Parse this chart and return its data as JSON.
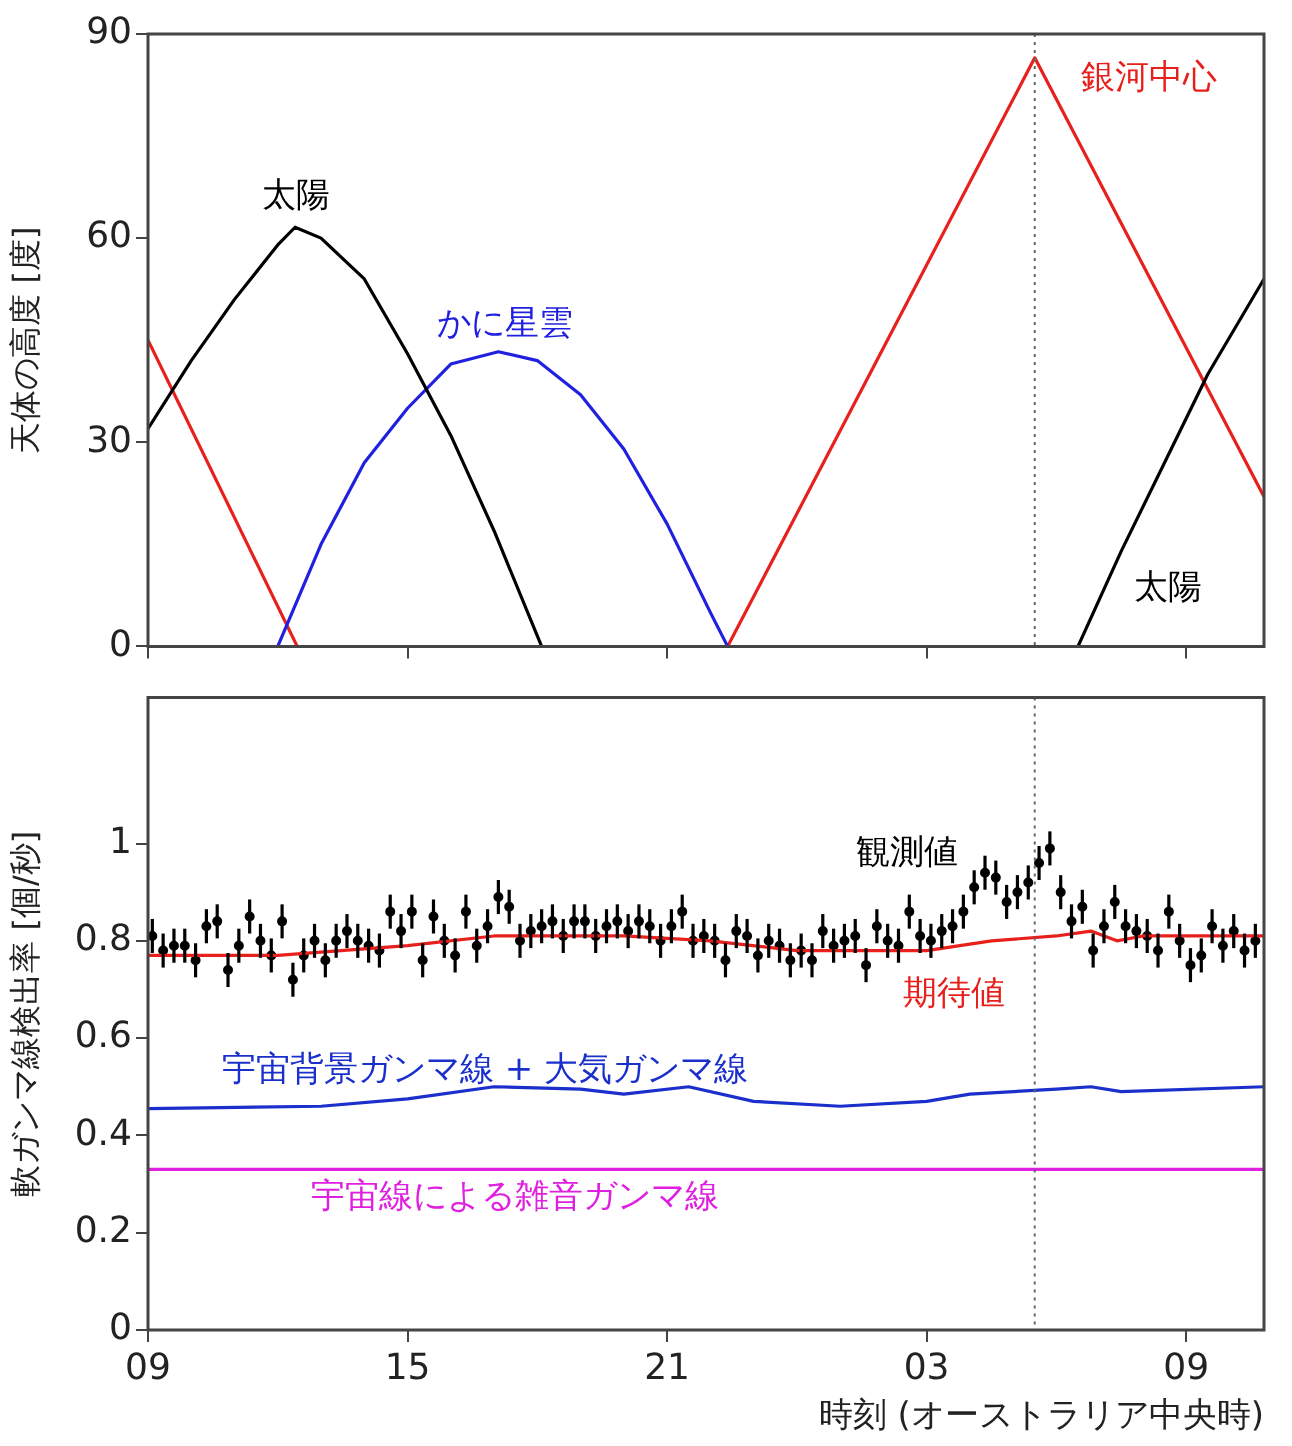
{
  "chart_data": [
    {
      "type": "line",
      "ylabel": "天体の高度 [度]",
      "xlim": [
        "--01-01T09:00",
        "--01-02T10:48"
      ],
      "ylim": [
        0,
        90
      ],
      "xticks": [
        {
          "value": "--01-01T09:00",
          "label": "09"
        },
        {
          "value": "--01-01T15:00",
          "label": "15"
        },
        {
          "value": "--01-01T21:00",
          "label": "21"
        },
        {
          "value": "--01-02T03:00",
          "label": "03"
        },
        {
          "value": "--01-02T09:00",
          "label": "09"
        }
      ],
      "yticks": [
        0,
        30,
        60,
        90
      ],
      "tick_labels": "y",
      "ref_lines": [
        {
          "axis": "x",
          "value": "--01-02T05:30",
          "line_style": "dotted",
          "color": "#666666"
        }
      ],
      "series": [
        {
          "name": "太陽",
          "color": "#000000",
          "x": [
            "--01-01T09:00",
            "--01-01T10:00",
            "--01-01T11:00",
            "--01-01T12:00",
            "--01-01T12:24",
            "--01-01T13:00",
            "--01-01T14:00",
            "--01-01T15:00",
            "--01-01T16:00",
            "--01-01T17:00",
            "--01-01T18:06",
            "--01-02T00:00",
            "--01-02T06:30",
            "--01-02T07:30",
            "--01-02T08:30",
            "--01-02T09:30",
            "--01-02T10:48"
          ],
          "values": [
            32,
            42,
            51,
            59,
            61.6,
            60,
            54,
            43,
            31,
            17,
            0,
            null,
            0,
            14,
            27,
            40,
            54
          ]
        },
        {
          "name": "かに星雲",
          "color": "#2020e0",
          "x": [
            "--01-01T12:00",
            "--01-01T13:00",
            "--01-01T14:00",
            "--01-01T15:00",
            "--01-01T16:00",
            "--01-01T17:06",
            "--01-01T18:00",
            "--01-01T19:00",
            "--01-01T20:00",
            "--01-01T21:00",
            "--01-01T22:00",
            "--01-01T22:24"
          ],
          "values": [
            0,
            15,
            27,
            35,
            41.5,
            43.3,
            42,
            37,
            29,
            18,
            5,
            0
          ]
        },
        {
          "name": "銀河中心",
          "color": "#e8201c",
          "x": [
            "--01-01T09:00",
            "--01-01T12:27",
            "--01-01T17:00",
            "--01-01T22:24",
            "--01-02T05:30",
            "--01-02T10:48"
          ],
          "values": [
            45,
            0,
            null,
            0,
            86.5,
            22
          ]
        }
      ]
    },
    {
      "type": "line",
      "ylabel": "軟ガンマ線検出率 [個/秒]",
      "xlabel": "時刻 (オーストラリア中央時)",
      "xlim": [
        "--01-01T09:00",
        "--01-02T10:48"
      ],
      "ylim": [
        0,
        1.3
      ],
      "xticks": [
        {
          "value": "--01-01T09:00",
          "label": "09"
        },
        {
          "value": "--01-01T15:00",
          "label": "15"
        },
        {
          "value": "--01-01T21:00",
          "label": "21"
        },
        {
          "value": "--01-02T03:00",
          "label": "03"
        },
        {
          "value": "--01-02T09:00",
          "label": "09"
        }
      ],
      "yticks": [
        0,
        0.2,
        0.4,
        0.6,
        0.8,
        1.0
      ],
      "ref_lines": [
        {
          "axis": "x",
          "value": "--01-02T05:30",
          "line_style": "dotted",
          "color": "#666666"
        }
      ],
      "series": [
        {
          "name": "宇宙線による雑音ガンマ線",
          "color": "#e020e0",
          "x": [
            "--01-01T09:00",
            "--01-02T10:48"
          ],
          "values": [
            0.33,
            0.33
          ]
        },
        {
          "name": "宇宙背景ガンマ線 + 大気ガンマ線",
          "color": "#1a2fcc",
          "x": [
            "--01-01T09:00",
            "--01-01T13:00",
            "--01-01T15:00",
            "--01-01T17:00",
            "--01-01T19:00",
            "--01-01T20:00",
            "--01-01T21:30",
            "--01-01T23:00",
            "--01-02T01:00",
            "--01-02T03:00",
            "--01-02T04:00",
            "--01-02T06:00",
            "--01-02T06:48",
            "--01-02T07:30",
            "--01-02T10:48"
          ],
          "values": [
            0.455,
            0.46,
            0.475,
            0.5,
            0.495,
            0.485,
            0.5,
            0.47,
            0.46,
            0.47,
            0.485,
            0.495,
            0.5,
            0.49,
            0.5
          ]
        },
        {
          "name": "期待値",
          "color": "#e8201c",
          "x": [
            "--01-01T09:00",
            "--01-01T12:00",
            "--01-01T15:00",
            "--01-01T17:00",
            "--01-01T20:00",
            "--01-01T22:00",
            "--01-02T00:00",
            "--01-02T03:00",
            "--01-02T04:30",
            "--01-02T06:00",
            "--01-02T06:48",
            "--01-02T07:24",
            "--01-02T08:00",
            "--01-02T10:48"
          ],
          "values": [
            0.77,
            0.77,
            0.79,
            0.81,
            0.81,
            0.8,
            0.78,
            0.78,
            0.8,
            0.81,
            0.82,
            0.8,
            0.81,
            0.81
          ]
        },
        {
          "name": "観測値",
          "type": "scatter",
          "color": "#000000",
          "marker": "circle",
          "x": [
            "--01-01T09:06",
            "--01-01T09:21",
            "--01-01T09:36",
            "--01-01T09:51",
            "--01-01T10:06",
            "--01-01T10:21",
            "--01-01T10:36",
            "--01-01T10:51",
            "--01-01T11:06",
            "--01-01T11:21",
            "--01-01T11:36",
            "--01-01T11:51",
            "--01-01T12:06",
            "--01-01T12:21",
            "--01-01T12:36",
            "--01-01T12:51",
            "--01-01T13:06",
            "--01-01T13:21",
            "--01-01T13:36",
            "--01-01T13:51",
            "--01-01T14:06",
            "--01-01T14:21",
            "--01-01T14:36",
            "--01-01T14:51",
            "--01-01T15:06",
            "--01-01T15:21",
            "--01-01T15:36",
            "--01-01T15:51",
            "--01-01T16:06",
            "--01-01T16:21",
            "--01-01T16:36",
            "--01-01T16:51",
            "--01-01T17:06",
            "--01-01T17:21",
            "--01-01T17:36",
            "--01-01T17:51",
            "--01-01T18:06",
            "--01-01T18:21",
            "--01-01T18:36",
            "--01-01T18:51",
            "--01-01T19:06",
            "--01-01T19:21",
            "--01-01T19:36",
            "--01-01T19:51",
            "--01-01T20:06",
            "--01-01T20:21",
            "--01-01T20:36",
            "--01-01T20:51",
            "--01-01T21:06",
            "--01-01T21:21",
            "--01-01T21:36",
            "--01-01T21:51",
            "--01-01T22:06",
            "--01-01T22:21",
            "--01-01T22:36",
            "--01-01T22:51",
            "--01-01T23:06",
            "--01-01T23:21",
            "--01-01T23:36",
            "--01-01T23:51",
            "--01-02T00:06",
            "--01-02T00:21",
            "--01-02T00:36",
            "--01-02T00:51",
            "--01-02T01:06",
            "--01-02T01:21",
            "--01-02T01:36",
            "--01-02T01:51",
            "--01-02T02:06",
            "--01-02T02:21",
            "--01-02T02:36",
            "--01-02T02:51",
            "--01-02T03:06",
            "--01-02T03:21",
            "--01-02T03:36",
            "--01-02T03:51",
            "--01-02T04:06",
            "--01-02T04:21",
            "--01-02T04:36",
            "--01-02T04:51",
            "--01-02T05:06",
            "--01-02T05:21",
            "--01-02T05:36",
            "--01-02T05:51",
            "--01-02T06:06",
            "--01-02T06:21",
            "--01-02T06:36",
            "--01-02T06:51",
            "--01-02T07:06",
            "--01-02T07:21",
            "--01-02T07:36",
            "--01-02T07:51",
            "--01-02T08:06",
            "--01-02T08:21",
            "--01-02T08:36",
            "--01-02T08:51",
            "--01-02T09:06",
            "--01-02T09:21",
            "--01-02T09:36",
            "--01-02T09:51",
            "--01-02T10:06",
            "--01-02T10:21",
            "--01-02T10:36"
          ],
          "values": [
            0.81,
            0.78,
            0.79,
            0.79,
            0.76,
            0.83,
            0.84,
            0.74,
            0.79,
            0.85,
            0.8,
            0.77,
            0.84,
            0.72,
            0.77,
            0.8,
            0.76,
            0.8,
            0.82,
            0.8,
            0.79,
            0.78,
            0.86,
            0.82,
            0.86,
            0.76,
            0.85,
            0.8,
            0.77,
            0.86,
            0.79,
            0.83,
            0.89,
            0.87,
            0.8,
            0.82,
            0.83,
            0.84,
            0.81,
            0.84,
            0.84,
            0.81,
            0.83,
            0.84,
            0.82,
            0.84,
            0.83,
            0.8,
            0.83,
            0.86,
            0.8,
            0.81,
            0.8,
            0.76,
            0.82,
            0.81,
            0.77,
            0.8,
            0.79,
            0.76,
            0.78,
            0.76,
            0.82,
            0.79,
            0.8,
            0.81,
            0.75,
            0.83,
            0.8,
            0.79,
            0.86,
            0.81,
            0.8,
            0.82,
            0.83,
            0.86,
            0.91,
            0.94,
            0.93,
            0.88,
            0.9,
            0.92,
            0.96,
            0.99,
            0.9,
            0.84,
            0.87,
            0.78,
            0.83,
            0.88,
            0.83,
            0.82,
            0.81,
            0.78,
            0.86,
            0.8,
            0.75,
            0.77,
            0.83,
            0.79,
            0.82,
            0.78,
            0.8
          ],
          "errors": [
            0.035,
            0.035,
            0.035,
            0.035,
            0.035,
            0.035,
            0.035,
            0.035,
            0.035,
            0.035,
            0.035,
            0.035,
            0.035,
            0.035,
            0.035,
            0.035,
            0.035,
            0.035,
            0.035,
            0.035,
            0.035,
            0.035,
            0.035,
            0.035,
            0.035,
            0.035,
            0.035,
            0.035,
            0.035,
            0.035,
            0.035,
            0.035,
            0.035,
            0.035,
            0.035,
            0.035,
            0.035,
            0.035,
            0.035,
            0.035,
            0.035,
            0.035,
            0.035,
            0.035,
            0.035,
            0.035,
            0.035,
            0.035,
            0.035,
            0.035,
            0.035,
            0.035,
            0.035,
            0.035,
            0.035,
            0.035,
            0.035,
            0.035,
            0.035,
            0.035,
            0.035,
            0.035,
            0.035,
            0.035,
            0.035,
            0.035,
            0.035,
            0.035,
            0.035,
            0.035,
            0.035,
            0.035,
            0.035,
            0.035,
            0.035,
            0.035,
            0.035,
            0.035,
            0.035,
            0.035,
            0.035,
            0.035,
            0.035,
            0.035,
            0.035,
            0.035,
            0.035,
            0.035,
            0.035,
            0.035,
            0.035,
            0.035,
            0.035,
            0.035,
            0.035,
            0.035,
            0.035,
            0.035,
            0.035,
            0.035,
            0.035,
            0.035,
            0.035
          ]
        }
      ]
    }
  ]
}
